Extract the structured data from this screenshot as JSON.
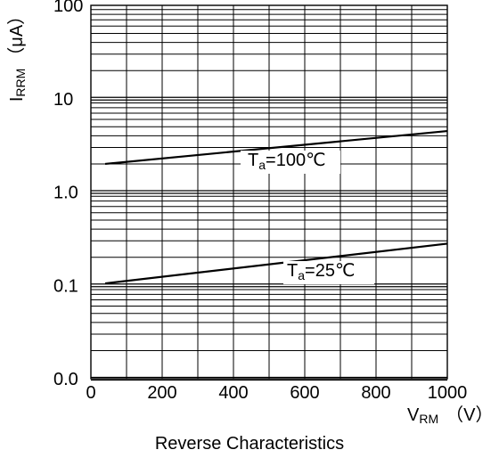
{
  "chart_data": {
    "type": "line",
    "title": "Reverse Characteristics",
    "xlabel": {
      "main": "V",
      "sub": "RM",
      "unit": "（V）"
    },
    "ylabel": {
      "main": "I",
      "sub": "RRM",
      "unit": "（μA）"
    },
    "x_ticks": [
      0,
      200,
      400,
      600,
      800,
      1000
    ],
    "x_tick_labels": [
      "0",
      "200",
      "400",
      "600",
      "800",
      "1000"
    ],
    "y_ticks": [
      0.01,
      0.1,
      1,
      10,
      100
    ],
    "y_tick_labels": [
      "0.0",
      "0.1",
      "1.0",
      "10",
      "100"
    ],
    "xlim": [
      0,
      1000
    ],
    "ylim": [
      0.01,
      100
    ],
    "y_scale": "log",
    "grid": true,
    "series": [
      {
        "label_main": "T",
        "label_sub": "a",
        "label_rest": "=100℃",
        "x": [
          40,
          1000
        ],
        "y": [
          2.0,
          4.5
        ]
      },
      {
        "label_main": "T",
        "label_sub": "a",
        "label_rest": "=25℃",
        "x": [
          40,
          1000
        ],
        "y": [
          0.105,
          0.28
        ]
      }
    ]
  }
}
